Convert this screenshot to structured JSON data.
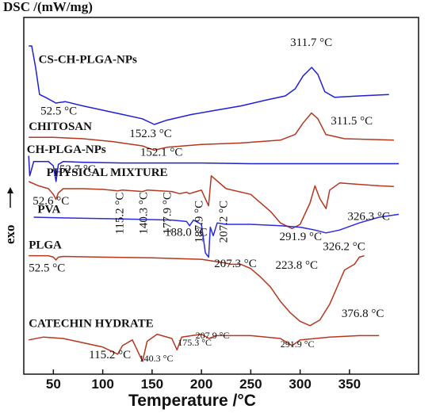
{
  "chart_data": {
    "type": "line",
    "title": "",
    "ylabel": "DSC /(mW/mg)",
    "exo_label": "exo",
    "xlabel": "Temperature /°C",
    "xlim": [
      20,
      420
    ],
    "x_ticks": [
      50,
      100,
      150,
      200,
      250,
      300,
      350
    ],
    "grid": false,
    "series": [
      {
        "name": "CS-CH-PLGA-NPs",
        "color": "#1f1fd6",
        "x": [
          25,
          28,
          32,
          36,
          42,
          52.5,
          62,
          80,
          100,
          120,
          140,
          152.3,
          165,
          190,
          215,
          240,
          265,
          285,
          295,
          303,
          311.7,
          318,
          325,
          335,
          360,
          390
        ],
        "y": [
          15,
          15,
          13.5,
          11.6,
          11.4,
          11.0,
          11.1,
          10.8,
          10.5,
          10.2,
          9.9,
          9.5,
          9.8,
          10.2,
          10.5,
          10.8,
          11.2,
          11.5,
          12.0,
          12.9,
          13.5,
          13.0,
          11.8,
          11.4,
          11.5,
          11.6
        ]
      },
      {
        "name": "CHITOSAN",
        "color": "#b5371f",
        "x": [
          25,
          50,
          80,
          110,
          140,
          152.1,
          165,
          200,
          240,
          280,
          295,
          303,
          311.5,
          318,
          326,
          345,
          370,
          395
        ],
        "y": [
          8.6,
          8.6,
          8.5,
          8.3,
          8.0,
          7.7,
          7.9,
          8.1,
          8.2,
          8.4,
          8.8,
          9.6,
          10.3,
          9.9,
          8.8,
          8.5,
          8.45,
          8.4
        ]
      },
      {
        "name": "CH-PLGA-NPs",
        "color": "#1f1fd6",
        "x": [
          25,
          26,
          30,
          45,
          50,
          52.7,
          55,
          60,
          80,
          120,
          160,
          200,
          250,
          300,
          350,
          400
        ],
        "y": [
          7.3,
          5.9,
          6.9,
          6.9,
          6.6,
          5.5,
          6.7,
          6.9,
          6.85,
          6.8,
          6.8,
          6.8,
          6.75,
          6.75,
          6.75,
          6.75
        ]
      },
      {
        "name": "PHYSICAL MIXTURE",
        "color": "#b5371f",
        "x": [
          25,
          35,
          45,
          50,
          52.6,
          55,
          60,
          80,
          100,
          115.2,
          120,
          140.3,
          145,
          170,
          177.9,
          185,
          187.9,
          195,
          200,
          207.2,
          210,
          225,
          250,
          270,
          280,
          291.9,
          300,
          310,
          315,
          320,
          326.3,
          330,
          340,
          360,
          380,
          395
        ],
        "y": [
          5.5,
          5.2,
          5.0,
          4.6,
          4.25,
          4.7,
          5.0,
          5.0,
          4.95,
          4.85,
          4.9,
          4.8,
          4.9,
          4.8,
          4.65,
          4.75,
          4.65,
          4.8,
          4.9,
          3.8,
          5.9,
          5.0,
          4.6,
          3.4,
          2.6,
          2.2,
          2.5,
          4.0,
          5.2,
          4.3,
          3.6,
          4.9,
          5.4,
          5.3,
          5.2,
          5.15
        ]
      },
      {
        "name": "PVA",
        "color": "#2b2be0",
        "x": [
          30,
          60,
          100,
          140,
          170,
          185,
          188.0,
          192,
          200,
          204,
          207.3,
          209,
          212,
          216,
          225,
          250,
          280,
          300,
          315,
          326.2,
          340,
          360,
          380,
          400
        ],
        "y": [
          3.0,
          2.95,
          2.9,
          2.85,
          2.8,
          2.7,
          2.4,
          2.8,
          2.5,
          0.5,
          0.2,
          2.3,
          1.7,
          2.6,
          2.5,
          2.5,
          2.4,
          2.3,
          2.1,
          1.9,
          2.1,
          2.6,
          3.0,
          3.2
        ]
      },
      {
        "name": "PLGA",
        "color": "#b5371f",
        "x": [
          25,
          45,
          50,
          52.5,
          55,
          60,
          100,
          150,
          200,
          223.8,
          230,
          240,
          250,
          260,
          270,
          280,
          290,
          300,
          310,
          320,
          330,
          340,
          345,
          355,
          360,
          365
        ],
        "y": [
          0.3,
          0.3,
          0.2,
          0.0,
          0.2,
          0.25,
          0.2,
          0.15,
          0.05,
          -0.2,
          -0.3,
          -0.3,
          -0.6,
          -1.2,
          -1.9,
          -2.9,
          -3.7,
          -4.3,
          -4.6,
          -4.2,
          -3.1,
          -1.5,
          -0.7,
          -0.3,
          0.2,
          0.3
        ]
      },
      {
        "name": "CATECHIN HYDRATE",
        "color": "#b5371f",
        "x": [
          25,
          40,
          60,
          80,
          100,
          115.2,
          120,
          130,
          140.3,
          145,
          155,
          170,
          175.3,
          180,
          200,
          207.9,
          215,
          250,
          280,
          291.9,
          300,
          330,
          360,
          380
        ],
        "y": [
          -5.6,
          -5.4,
          -5.5,
          -5.8,
          -6.1,
          -6.6,
          -6.0,
          -5.6,
          -7.1,
          -5.7,
          -5.2,
          -5.5,
          -6.3,
          -5.4,
          -5.2,
          -5.5,
          -5.3,
          -5.3,
          -5.5,
          -6.0,
          -5.6,
          -5.4,
          -5.3,
          -5.3
        ]
      }
    ],
    "curve_labels": [
      {
        "text": "CS-CH-PLGA-NPs",
        "x": 35,
        "y": 13.8
      },
      {
        "text": "CHITOSAN",
        "x": 25,
        "y": 9.1
      },
      {
        "text": "CH-PLGA-NPs",
        "x": 23,
        "y": 7.5
      },
      {
        "text": "PHYSICAL MIXTURE",
        "x": 43,
        "y": 5.9
      },
      {
        "text": "PVA",
        "x": 34,
        "y": 3.3
      },
      {
        "text": "PLGA",
        "x": 25,
        "y": 0.8
      },
      {
        "text": "CATECHIN HYDRATE",
        "x": 25,
        "y": -4.7
      }
    ],
    "annotations": [
      {
        "text": "311.7 °C",
        "x": 290,
        "y": 15.0,
        "rotate": false
      },
      {
        "text": "52.5 °C",
        "x": 37,
        "y": 10.2,
        "rotate": false
      },
      {
        "text": "152.3 °C",
        "x": 127,
        "y": 8.6,
        "rotate": false
      },
      {
        "text": "311.5 °C",
        "x": 331,
        "y": 9.5,
        "rotate": false
      },
      {
        "text": "152.1 °C",
        "x": 138,
        "y": 7.3,
        "rotate": false
      },
      {
        "text": "52.7 °C",
        "x": 56,
        "y": 6.1,
        "rotate": false
      },
      {
        "text": "52.6 °C",
        "x": 29,
        "y": 3.9,
        "rotate": false
      },
      {
        "text": "115.2 °C",
        "x": 121,
        "y": 1.8,
        "rotate": true
      },
      {
        "text": "140.3 °C",
        "x": 145,
        "y": 1.8,
        "rotate": true
      },
      {
        "text": "177.9 °C",
        "x": 169,
        "y": 1.8,
        "rotate": true
      },
      {
        "text": "187.9 °C",
        "x": 201,
        "y": 1.2,
        "rotate": true
      },
      {
        "text": "207.2 °C",
        "x": 226,
        "y": 1.2,
        "rotate": true
      },
      {
        "text": "326.3 °C",
        "x": 348,
        "y": 2.8,
        "rotate": false
      },
      {
        "text": "291.9 °C",
        "x": 279,
        "y": 1.4,
        "rotate": false
      },
      {
        "text": "188.0 °C",
        "x": 163,
        "y": 1.7,
        "rotate": false
      },
      {
        "text": "207.3 °C",
        "x": 213,
        "y": -0.5,
        "rotate": false
      },
      {
        "text": "326.2 °C",
        "x": 323,
        "y": 0.7,
        "rotate": false
      },
      {
        "text": "52.5 °C",
        "x": 25,
        "y": -0.8,
        "rotate": false
      },
      {
        "text": "223.8 °C",
        "x": 275,
        "y": -0.6,
        "rotate": false
      },
      {
        "text": "376.8 °C",
        "x": 342,
        "y": -4.0,
        "rotate": false
      },
      {
        "text": "207.9 °C",
        "x": 194,
        "y": -5.5,
        "rotate": false,
        "small": true
      },
      {
        "text": "175.3 °C",
        "x": 176,
        "y": -6.0,
        "rotate": false,
        "small": true
      },
      {
        "text": "115.2 °C",
        "x": 86,
        "y": -6.9,
        "rotate": false
      },
      {
        "text": "140.3 °C",
        "x": 137,
        "y": -7.1,
        "rotate": false,
        "small": true
      },
      {
        "text": "291.9 °C",
        "x": 280,
        "y": -6.1,
        "rotate": false,
        "small": true
      }
    ]
  }
}
